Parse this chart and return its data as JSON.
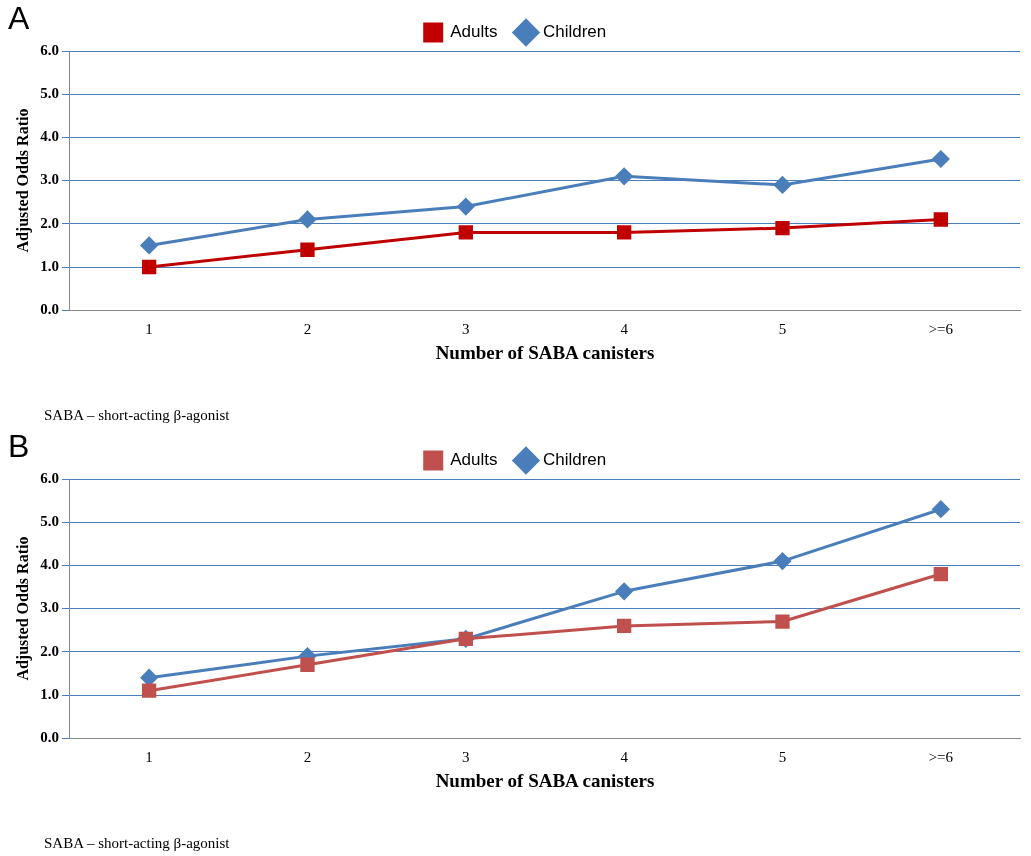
{
  "chart_data": [
    {
      "type": "line",
      "title": "A",
      "xlabel": "Number of SABA canisters",
      "ylabel": "Adjusted Odds Ratio",
      "categories": [
        "1",
        "2",
        "3",
        "4",
        "5",
        ">=6"
      ],
      "series": [
        {
          "name": "Children",
          "color": "#4a7ebb",
          "marker": "diamond",
          "values": [
            1.5,
            2.1,
            2.4,
            3.1,
            2.9,
            3.5
          ]
        },
        {
          "name": "Adults",
          "color": "#c00000",
          "marker": "square",
          "values": [
            1.0,
            1.4,
            1.8,
            1.8,
            1.9,
            2.1
          ]
        }
      ],
      "ylim": [
        0,
        6
      ],
      "yticks": [
        {
          "value": 0,
          "label": "0.0"
        },
        {
          "value": 1,
          "label": "1.0"
        },
        {
          "value": 2,
          "label": "2.0"
        },
        {
          "value": 3,
          "label": "3.0"
        },
        {
          "value": 4,
          "label": "4.0"
        },
        {
          "value": 5,
          "label": "5.0"
        },
        {
          "value": 6,
          "label": "6.0"
        }
      ],
      "grid": "y",
      "legend": "top",
      "line_style": "solid",
      "annotations": [
        "SABA – short-acting β-agonist"
      ]
    },
    {
      "type": "line",
      "title": "B",
      "xlabel": "Number of SABA canisters",
      "ylabel": "Adjusted Odds Ratio",
      "categories": [
        "1",
        "2",
        "3",
        "4",
        "5",
        ">=6"
      ],
      "series": [
        {
          "name": "Children",
          "color": "#4a7ebb",
          "marker": "diamond",
          "values": [
            1.4,
            1.9,
            2.3,
            3.4,
            4.1,
            5.3
          ]
        },
        {
          "name": "Adults",
          "color": "#c0504d",
          "marker": "square",
          "values": [
            1.1,
            1.7,
            2.3,
            2.6,
            2.7,
            3.8
          ]
        }
      ],
      "ylim": [
        0,
        6
      ],
      "yticks": [
        {
          "value": 0,
          "label": "0.0"
        },
        {
          "value": 1,
          "label": "1.0"
        },
        {
          "value": 2,
          "label": "2.0"
        },
        {
          "value": 3,
          "label": "3.0"
        },
        {
          "value": 4,
          "label": "4.0"
        },
        {
          "value": 5,
          "label": "5.0"
        },
        {
          "value": 6,
          "label": "6.0"
        }
      ],
      "grid": "y",
      "legend": "top",
      "line_style": "solid",
      "annotations": [
        "SABA – short-acting β-agonist"
      ]
    }
  ]
}
